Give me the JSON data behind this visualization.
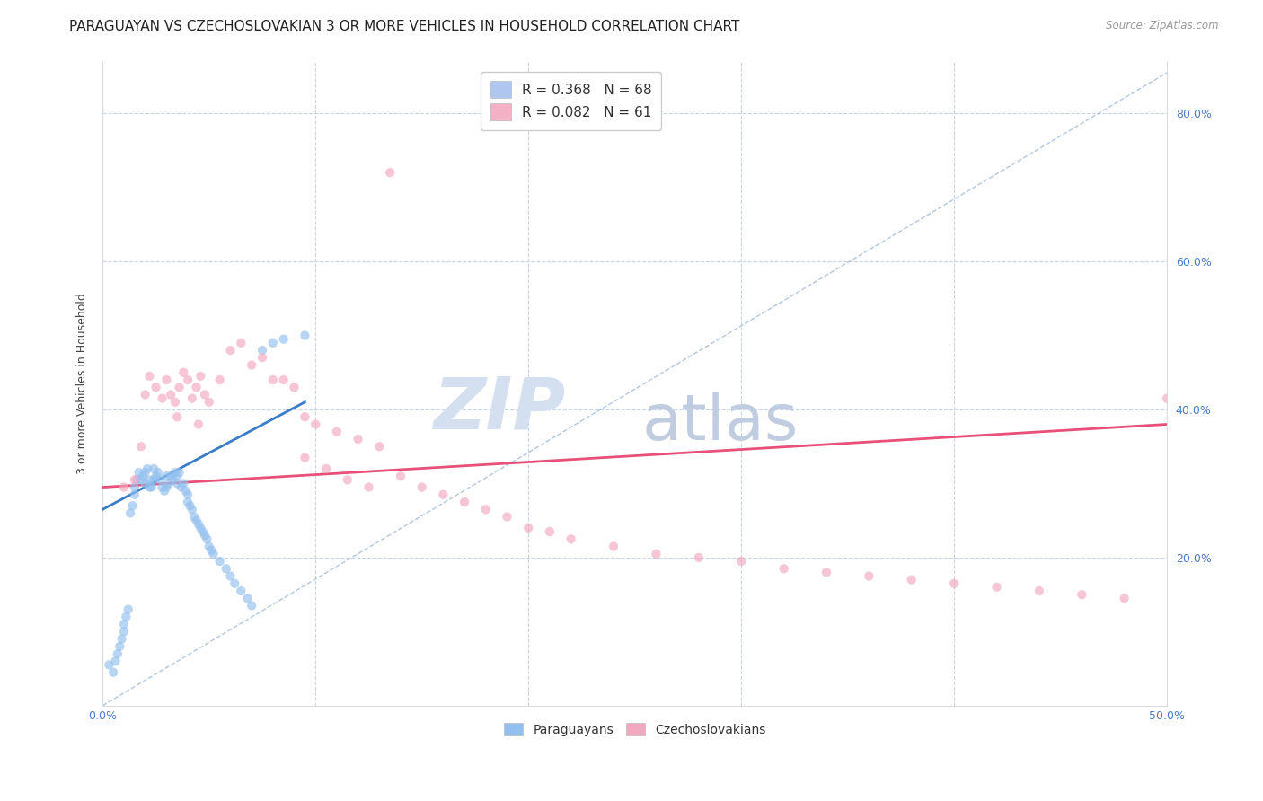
{
  "title": "PARAGUAYAN VS CZECHOSLOVAKIAN 3 OR MORE VEHICLES IN HOUSEHOLD CORRELATION CHART",
  "source": "Source: ZipAtlas.com",
  "ylabel": "3 or more Vehicles in Household",
  "xlim": [
    0.0,
    0.5
  ],
  "ylim": [
    0.0,
    0.87
  ],
  "yticks": [
    0.0,
    0.2,
    0.4,
    0.6,
    0.8
  ],
  "ytick_labels_right": [
    "",
    "20.0%",
    "40.0%",
    "60.0%",
    "80.0%"
  ],
  "xticks": [
    0.0,
    0.1,
    0.2,
    0.3,
    0.4,
    0.5
  ],
  "xtick_labels": [
    "0.0%",
    "",
    "",
    "",
    "",
    "50.0%"
  ],
  "legend_entries": [
    {
      "label": "R = 0.368   N = 68",
      "color": "#aec6f0"
    },
    {
      "label": "R = 0.082   N = 61",
      "color": "#f4b0c4"
    }
  ],
  "paraguayan_scatter_x": [
    0.003,
    0.005,
    0.006,
    0.007,
    0.008,
    0.009,
    0.01,
    0.01,
    0.011,
    0.012,
    0.013,
    0.014,
    0.015,
    0.015,
    0.016,
    0.017,
    0.018,
    0.019,
    0.02,
    0.02,
    0.021,
    0.022,
    0.022,
    0.023,
    0.024,
    0.024,
    0.025,
    0.026,
    0.027,
    0.028,
    0.029,
    0.03,
    0.03,
    0.031,
    0.032,
    0.033,
    0.034,
    0.035,
    0.035,
    0.036,
    0.037,
    0.038,
    0.039,
    0.04,
    0.04,
    0.041,
    0.042,
    0.043,
    0.044,
    0.045,
    0.046,
    0.047,
    0.048,
    0.049,
    0.05,
    0.051,
    0.052,
    0.055,
    0.058,
    0.06,
    0.062,
    0.065,
    0.068,
    0.07,
    0.075,
    0.08,
    0.085,
    0.095
  ],
  "paraguayan_scatter_y": [
    0.055,
    0.045,
    0.06,
    0.07,
    0.08,
    0.09,
    0.1,
    0.11,
    0.12,
    0.13,
    0.26,
    0.27,
    0.285,
    0.295,
    0.305,
    0.315,
    0.305,
    0.31,
    0.3,
    0.315,
    0.32,
    0.295,
    0.305,
    0.295,
    0.305,
    0.32,
    0.31,
    0.315,
    0.305,
    0.295,
    0.29,
    0.295,
    0.31,
    0.3,
    0.31,
    0.305,
    0.315,
    0.3,
    0.31,
    0.315,
    0.295,
    0.3,
    0.29,
    0.285,
    0.275,
    0.27,
    0.265,
    0.255,
    0.25,
    0.245,
    0.24,
    0.235,
    0.23,
    0.225,
    0.215,
    0.21,
    0.205,
    0.195,
    0.185,
    0.175,
    0.165,
    0.155,
    0.145,
    0.135,
    0.48,
    0.49,
    0.495,
    0.5
  ],
  "czechoslovakian_scatter_x": [
    0.01,
    0.015,
    0.018,
    0.02,
    0.022,
    0.025,
    0.028,
    0.03,
    0.032,
    0.034,
    0.036,
    0.038,
    0.04,
    0.042,
    0.044,
    0.046,
    0.048,
    0.05,
    0.055,
    0.06,
    0.065,
    0.07,
    0.075,
    0.08,
    0.085,
    0.09,
    0.095,
    0.1,
    0.11,
    0.12,
    0.13,
    0.14,
    0.15,
    0.16,
    0.17,
    0.18,
    0.19,
    0.2,
    0.21,
    0.22,
    0.24,
    0.26,
    0.28,
    0.3,
    0.32,
    0.34,
    0.36,
    0.38,
    0.4,
    0.42,
    0.44,
    0.46,
    0.48,
    0.5,
    0.035,
    0.045,
    0.095,
    0.105,
    0.115,
    0.125,
    0.135
  ],
  "czechoslovakian_scatter_y": [
    0.295,
    0.305,
    0.35,
    0.42,
    0.445,
    0.43,
    0.415,
    0.44,
    0.42,
    0.41,
    0.43,
    0.45,
    0.44,
    0.415,
    0.43,
    0.445,
    0.42,
    0.41,
    0.44,
    0.48,
    0.49,
    0.46,
    0.47,
    0.44,
    0.44,
    0.43,
    0.39,
    0.38,
    0.37,
    0.36,
    0.35,
    0.31,
    0.295,
    0.285,
    0.275,
    0.265,
    0.255,
    0.24,
    0.235,
    0.225,
    0.215,
    0.205,
    0.2,
    0.195,
    0.185,
    0.18,
    0.175,
    0.17,
    0.165,
    0.16,
    0.155,
    0.15,
    0.145,
    0.415,
    0.39,
    0.38,
    0.335,
    0.32,
    0.305,
    0.295,
    0.72
  ],
  "paraguayan_line_x": [
    0.0,
    0.095
  ],
  "paraguayan_line_y": [
    0.265,
    0.41
  ],
  "czechoslovakian_line_x": [
    0.0,
    0.5
  ],
  "czechoslovakian_line_y": [
    0.295,
    0.38
  ],
  "diagonal_line_x": [
    0.0,
    0.5
  ],
  "diagonal_line_y": [
    0.0,
    0.855
  ],
  "scatter_alpha": 0.65,
  "scatter_size": 55,
  "paraguayan_color": "#92bfef",
  "czechoslovakian_color": "#f4a8c0",
  "paraguayan_line_color": "#3a7cc8",
  "czechoslovakian_line_color": "#e8507a",
  "diagonal_color": "#a0b8d8",
  "background_color": "#ffffff",
  "grid_color": "#c8d4e8",
  "title_fontsize": 11,
  "axis_fontsize": 9,
  "legend_fontsize": 11,
  "watermark_zip_color": "#d4dff0",
  "watermark_atlas_color": "#c0cce0"
}
